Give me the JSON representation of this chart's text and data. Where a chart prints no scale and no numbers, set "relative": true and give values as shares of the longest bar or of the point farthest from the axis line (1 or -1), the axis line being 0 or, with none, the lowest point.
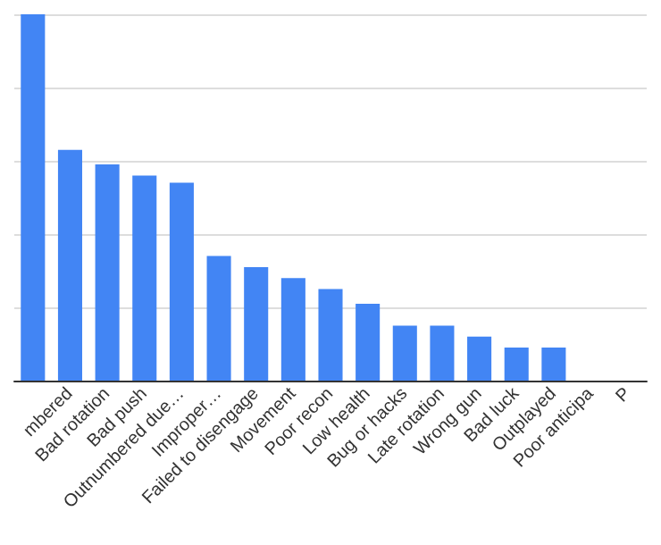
{
  "chart_data": {
    "type": "bar",
    "relative": true,
    "grid": "y",
    "categories": [
      null,
      "mbered",
      "Bad rotation",
      "Bad push",
      "Outnumbered due…",
      "Improper…",
      "Failed to disengage",
      "Movement",
      "Poor recon",
      "Low health",
      "Bug or hacks",
      "Late rotation",
      "Wrong gun",
      "Bad luck",
      "Outplayed",
      "Poor anticipa",
      "P"
    ],
    "values": [
      1,
      0.63,
      0.59,
      0.56,
      0.54,
      0.34,
      0.31,
      0.28,
      0.25,
      0.21,
      0.15,
      0.15,
      0.12,
      0.09,
      0.09,
      null,
      null
    ],
    "color": "#4285f4"
  }
}
